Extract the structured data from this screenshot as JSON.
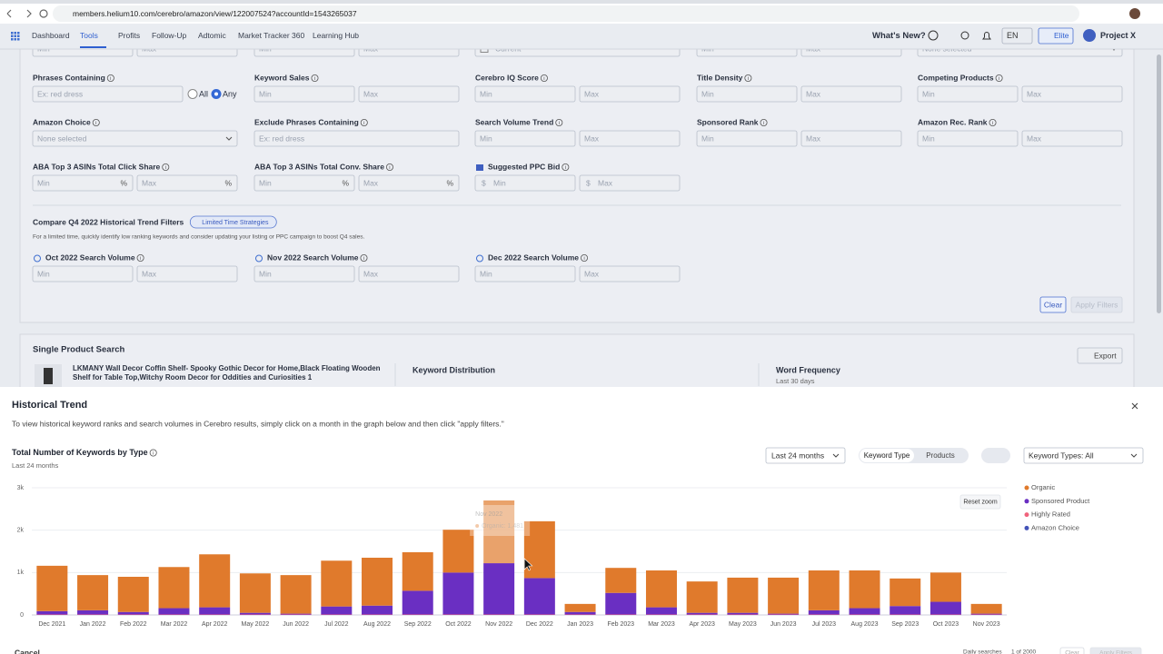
{
  "browser": {
    "url": "members.helium10.com/cerebro/amazon/view/122007524?accountId=1543265037"
  },
  "nav": {
    "items": [
      "Dashboard",
      "Tools",
      "Profits",
      "Follow-Up",
      "Adtomic",
      "Market Tracker 360",
      "Learning Hub"
    ],
    "whats_new": "What's New?",
    "language": "EN",
    "plan": "Elite",
    "account": "Project X"
  },
  "filters": {
    "rows": [
      [
        {
          "inputs": [
            "Min",
            "Max"
          ]
        },
        {
          "inputs": [
            "Min",
            "Max"
          ]
        },
        {
          "inputs": [
            "Current"
          ],
          "type": "checkbox"
        },
        {
          "inputs": [
            "Min",
            "Max"
          ]
        },
        {
          "inputs": [
            "None selected"
          ],
          "type": "select"
        }
      ],
      [
        {
          "label": "Phrases Containing",
          "inputs": [
            "Ex: red dress"
          ],
          "radios": [
            "All",
            "Any"
          ]
        },
        {
          "label": "Keyword Sales",
          "inputs": [
            "Min",
            "Max"
          ]
        },
        {
          "label": "Cerebro IQ Score",
          "inputs": [
            "Min",
            "Max"
          ]
        },
        {
          "label": "Title Density",
          "inputs": [
            "Min",
            "Max"
          ]
        },
        {
          "label": "Competing Products",
          "inputs": [
            "Min",
            "Max"
          ]
        }
      ],
      [
        {
          "label": "Amazon Choice",
          "inputs": [
            "None selected"
          ],
          "type": "select"
        },
        {
          "label": "Exclude Phrases Containing",
          "inputs": [
            "Ex: red dress"
          ]
        },
        {
          "label": "Search Volume Trend",
          "inputs": [
            "Min",
            "Max"
          ]
        },
        {
          "label": "Sponsored Rank",
          "inputs": [
            "Min",
            "Max"
          ]
        },
        {
          "label": "Amazon Rec. Rank",
          "inputs": [
            "Min",
            "Max"
          ]
        }
      ],
      [
        {
          "label": "ABA Top 3 ASINs Total Click Share",
          "inputs": [
            "Min",
            "Max"
          ],
          "suffix": "%"
        },
        {
          "label": "ABA Top 3 ASINs Total Conv. Share",
          "inputs": [
            "Min",
            "Max"
          ],
          "suffix": "%"
        },
        {
          "label": "Suggested PPC Bid",
          "inputs": [
            "Min",
            "Max"
          ],
          "prefix": "$"
        }
      ]
    ],
    "compare": {
      "title": "Compare Q4 2022 Historical Trend Filters",
      "badge": "Limited Time Strategies",
      "description": "For a limited time, quickly identify low ranking keywords and consider updating your listing or PPC campaign to boost Q4 sales.",
      "fields": [
        {
          "label": "Oct 2022 Search Volume",
          "inputs": [
            "Min",
            "Max"
          ]
        },
        {
          "label": "Nov 2022 Search Volume",
          "inputs": [
            "Min",
            "Max"
          ]
        },
        {
          "label": "Dec 2022 Search Volume",
          "inputs": [
            "Min",
            "Max"
          ]
        }
      ]
    },
    "buttons": [
      "Clear",
      "Apply Filters"
    ]
  },
  "product_search": {
    "title": "Single Product Search",
    "export": "Export",
    "product": [
      "LKMANY Wall Decor Coffin Shelf- Spooky Gothic Decor for Home,Black Floating Wooden",
      "Shelf for Table Top,Witchy Room Decor for Oddities and Curiosities 1"
    ],
    "keyword_distribution": "Keyword Distribution",
    "word_frequency": "Word Frequency",
    "period": "Last 30 days"
  },
  "modal": {
    "title": "Historical Trend",
    "description": "To view historical keyword ranks and search volumes in Cerebro results, simply click on a month in the graph below and then click \"apply filters.\"",
    "range": "Last 24 months",
    "toggle": [
      "Keyword Type",
      "Products"
    ],
    "keyword_types": "Keyword Types: All",
    "reset_zoom": "Reset zoom",
    "footer": {
      "cancel": "Cancel",
      "daily": "Daily searches",
      "page": "1 of 2000",
      "clear": "Clear",
      "apply": "Apply Filters"
    }
  },
  "chart_data": {
    "type": "bar",
    "stacked": true,
    "title": "Total Number of Keywords by Type",
    "subtitle": "Last 24 months",
    "categories": [
      "Dec 2021",
      "Jan 2022",
      "Feb 2022",
      "Mar 2022",
      "Apr 2022",
      "May 2022",
      "Jun 2022",
      "Jul 2022",
      "Aug 2022",
      "Sep 2022",
      "Oct 2022",
      "Nov 2022",
      "Dec 2022",
      "Jan 2023",
      "Feb 2023",
      "Mar 2023",
      "Apr 2023",
      "May 2023",
      "Jun 2023",
      "Jul 2023",
      "Aug 2023",
      "Sep 2023",
      "Oct 2023",
      "Nov 2023"
    ],
    "series": [
      {
        "name": "Organic",
        "color": "#e07a2c",
        "values": [
          1070,
          830,
          830,
          970,
          1250,
          930,
          910,
          1080,
          1130,
          910,
          1010,
          1481,
          1340,
          190,
          590,
          870,
          740,
          830,
          850,
          940,
          890,
          650,
          690,
          230
        ]
      },
      {
        "name": "Sponsored Product",
        "color": "#6a2fc2",
        "values": [
          80,
          100,
          60,
          150,
          170,
          40,
          20,
          190,
          210,
          560,
          990,
          1210,
          860,
          60,
          510,
          170,
          40,
          40,
          20,
          100,
          150,
          200,
          300,
          20
        ]
      },
      {
        "name": "Highly Rated",
        "color": "#f0637c",
        "values": [
          10,
          10,
          10,
          10,
          10,
          10,
          10,
          10,
          10,
          10,
          10,
          10,
          10,
          10,
          10,
          10,
          10,
          10,
          10,
          10,
          10,
          10,
          10,
          10
        ]
      },
      {
        "name": "Amazon Choice",
        "color": "#4453b8",
        "values": [
          0,
          0,
          0,
          0,
          0,
          0,
          0,
          0,
          0,
          0,
          0,
          0,
          0,
          0,
          0,
          0,
          0,
          0,
          0,
          0,
          0,
          0,
          0,
          0
        ]
      }
    ],
    "ylim": [
      0,
      3000
    ],
    "yticks": [
      0,
      {
        "value": 1000,
        "label": "1k"
      },
      {
        "value": 2000,
        "label": "2k"
      },
      {
        "value": 3000,
        "label": "3k"
      }
    ],
    "grid": true,
    "legend": "right",
    "tooltip": {
      "title": "Nov 2022",
      "label": "Organic: 1,481"
    }
  }
}
